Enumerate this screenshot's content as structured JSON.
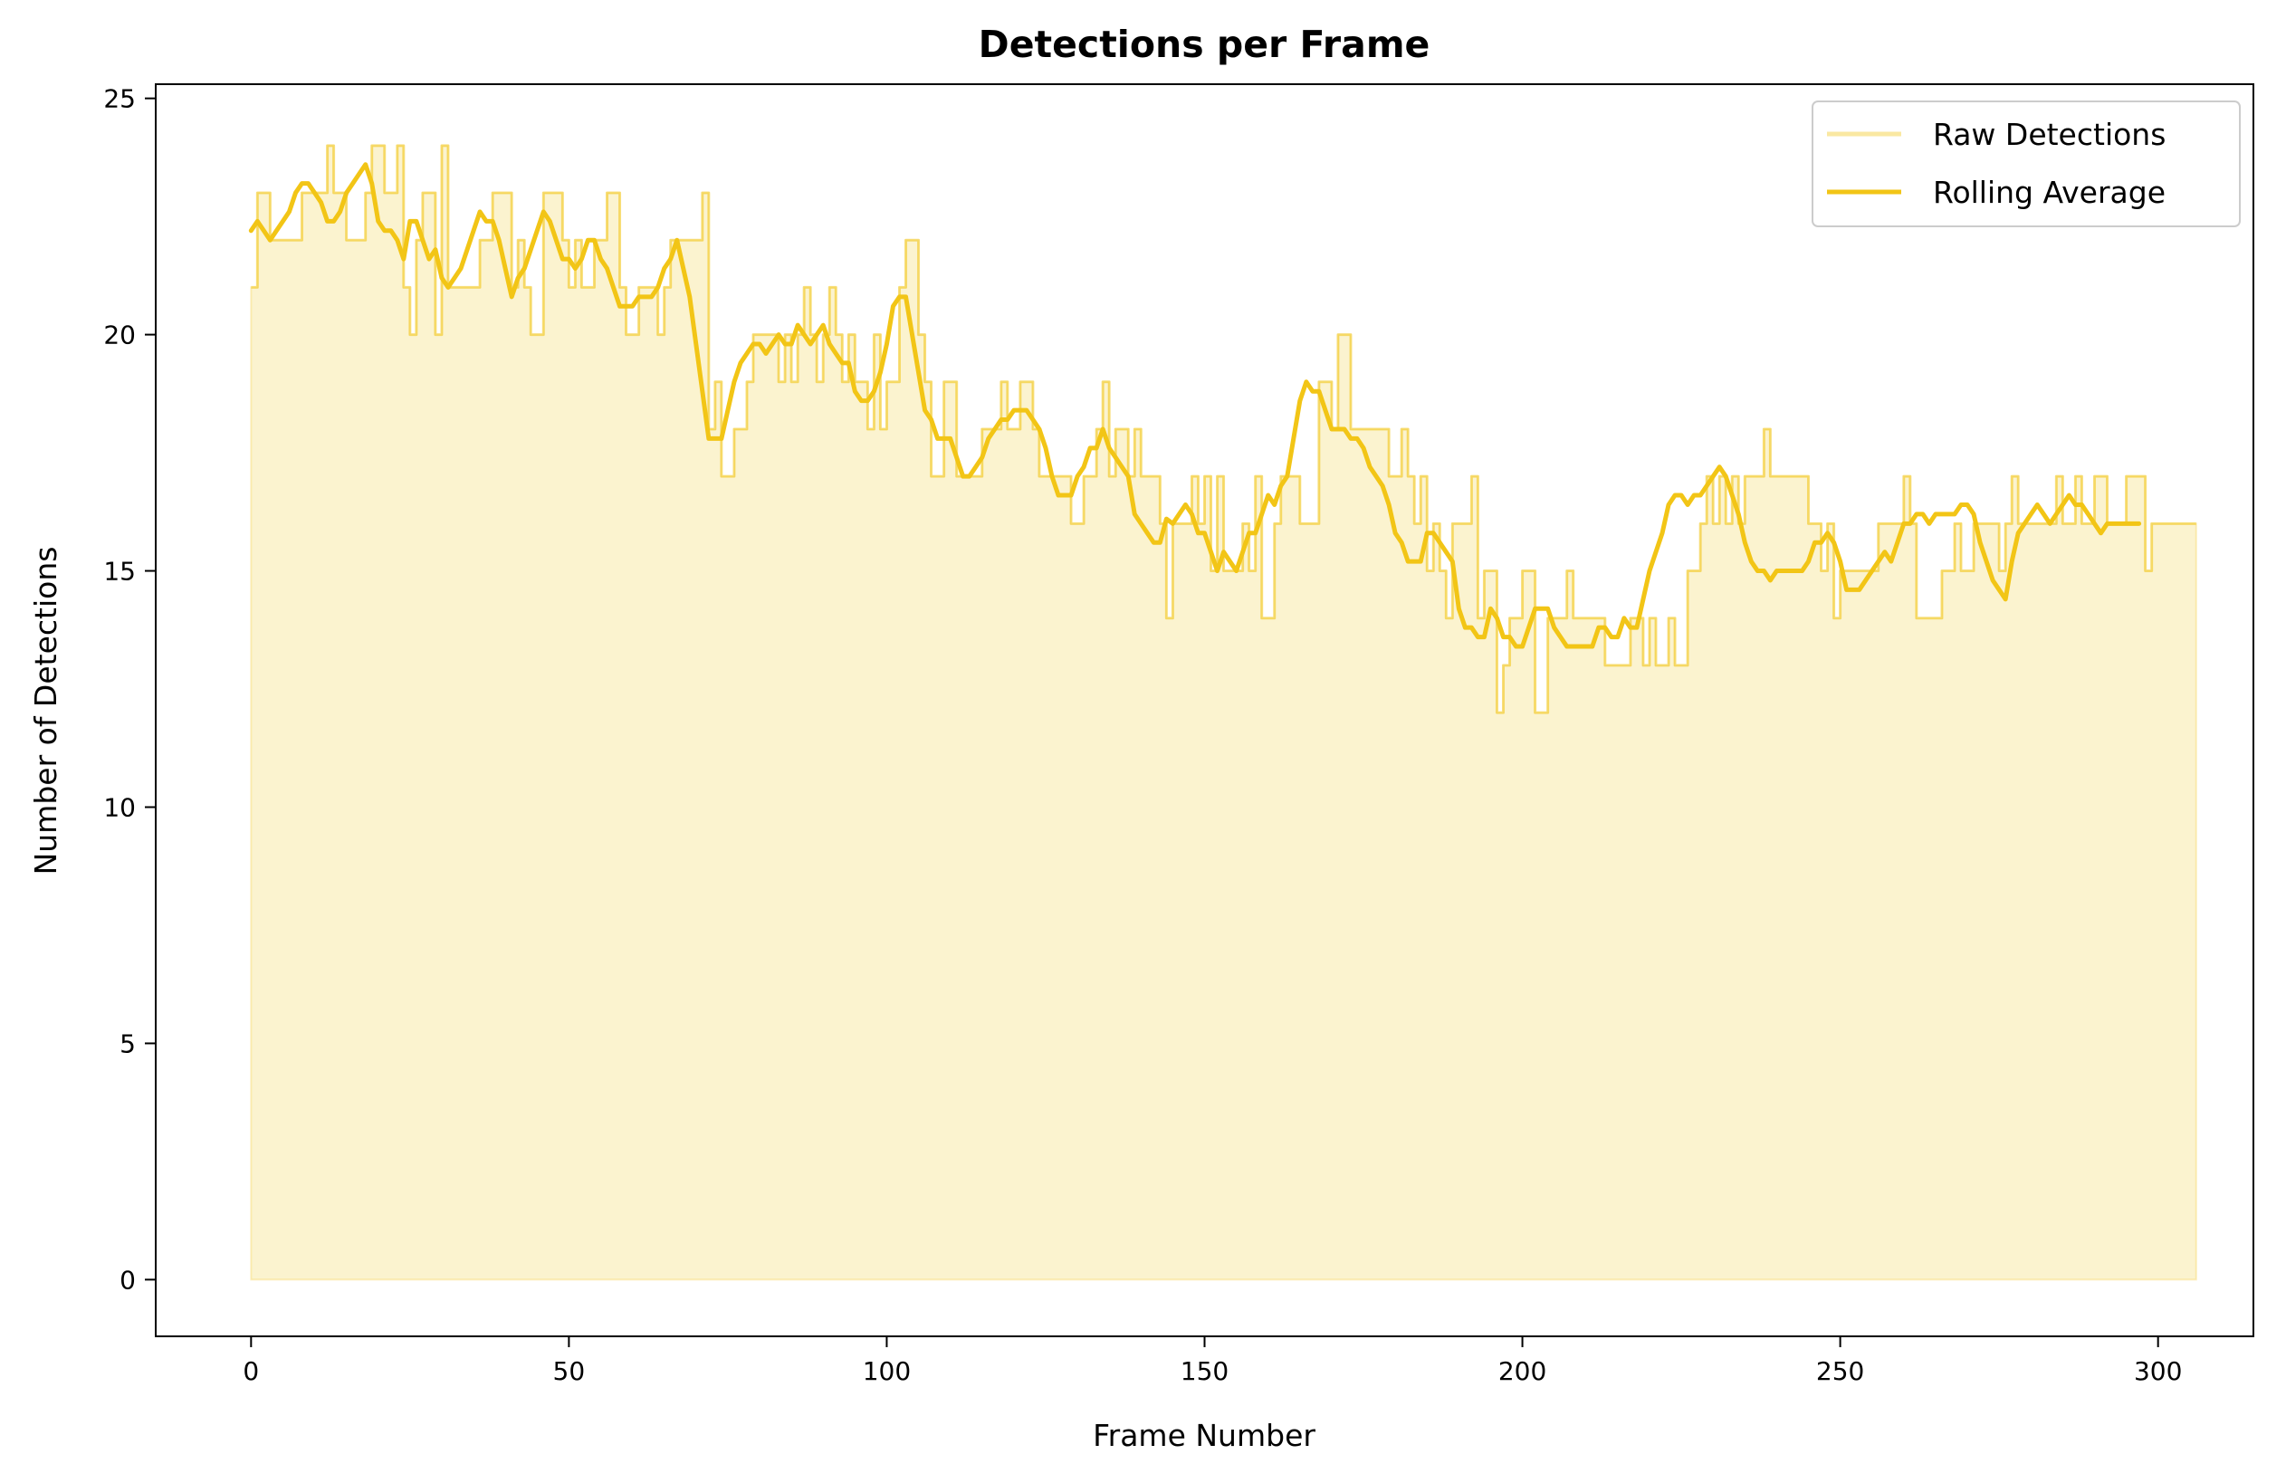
{
  "chart_data": {
    "type": "area",
    "title": "Detections per Frame",
    "xlabel": "Frame Number",
    "ylabel": "Number of Detections",
    "xlim": [
      -15,
      315
    ],
    "ylim": [
      -1.2,
      25.3
    ],
    "xticks": [
      0,
      50,
      100,
      150,
      200,
      250,
      300
    ],
    "yticks": [
      0,
      5,
      10,
      15,
      20,
      25
    ],
    "grid": false,
    "legend_position": "top-right",
    "colors": {
      "raw": "#f2c516",
      "rolling": "#f2c516",
      "fill": "#fbf3cf"
    },
    "series": [
      {
        "name": "Raw Detections",
        "style": "line-with-fill",
        "values": [
          21,
          23,
          23,
          22,
          22,
          22,
          22,
          22,
          23,
          23,
          23,
          23,
          24,
          23,
          23,
          22,
          22,
          22,
          23,
          24,
          24,
          23,
          23,
          24,
          21,
          20,
          22,
          23,
          23,
          20,
          24,
          21,
          21,
          21,
          21,
          21,
          22,
          22,
          23,
          23,
          23,
          21,
          22,
          21,
          20,
          20,
          23,
          23,
          23,
          22,
          21,
          22,
          21,
          21,
          22,
          22,
          23,
          23,
          21,
          20,
          20,
          21,
          21,
          21,
          20,
          21,
          22,
          22,
          22,
          22,
          22,
          23,
          18,
          19,
          17,
          17,
          18,
          18,
          19,
          20,
          20,
          20,
          20,
          19,
          20,
          19,
          20,
          21,
          20,
          19,
          20,
          21,
          20,
          19,
          20,
          19,
          19,
          18,
          20,
          18,
          19,
          19,
          21,
          22,
          22,
          20,
          19,
          17,
          17,
          19,
          19,
          17,
          17,
          17,
          17,
          18,
          18,
          18,
          19,
          18,
          18,
          19,
          19,
          18,
          17,
          17,
          17,
          17,
          17,
          16,
          16,
          17,
          17,
          18,
          19,
          17,
          18,
          18,
          17,
          18,
          17,
          17,
          17,
          16,
          14,
          16,
          16,
          16,
          17,
          16,
          17,
          15,
          17,
          15,
          15,
          15,
          16,
          15,
          17,
          14,
          14,
          16,
          17,
          17,
          17,
          16,
          16,
          16,
          19,
          19,
          18,
          20,
          20,
          18,
          18,
          18,
          18,
          18,
          18,
          17,
          17,
          18,
          17,
          16,
          17,
          15,
          16,
          15,
          14,
          16,
          16,
          16,
          17,
          14,
          15,
          15,
          12,
          13,
          14,
          14,
          15,
          15,
          12,
          12,
          14,
          14,
          14,
          15,
          14,
          14,
          14,
          14,
          14,
          13,
          13,
          13,
          13,
          14,
          14,
          13,
          14,
          13,
          13,
          14,
          13,
          13,
          15,
          15,
          16,
          17,
          16,
          17,
          16,
          17,
          16,
          17,
          17,
          17,
          18,
          17,
          17,
          17,
          17,
          17,
          17,
          16,
          16,
          15,
          16,
          14,
          15,
          15,
          15,
          15,
          15,
          15,
          16,
          16,
          16,
          16,
          17,
          16,
          14,
          14,
          14,
          14,
          15,
          15,
          16,
          15,
          15,
          16,
          16,
          16,
          16,
          15,
          16,
          17,
          16,
          16,
          16,
          16,
          16,
          16,
          17,
          16,
          16,
          17,
          16,
          16,
          17,
          17,
          16,
          16,
          16,
          17,
          17,
          17,
          15,
          16,
          16,
          16,
          16,
          16,
          16,
          16
        ]
      },
      {
        "name": "Rolling Average",
        "style": "line",
        "values": [
          22.2,
          22.4,
          22.2,
          22.0,
          22.2,
          22.4,
          22.6,
          23.0,
          23.2,
          23.2,
          23.0,
          22.8,
          22.4,
          22.4,
          22.6,
          23.0,
          23.2,
          23.4,
          23.6,
          23.2,
          22.4,
          22.2,
          22.2,
          22.0,
          21.6,
          22.4,
          22.4,
          22.0,
          21.6,
          21.8,
          21.2,
          21.0,
          21.2,
          21.4,
          21.8,
          22.2,
          22.6,
          22.4,
          22.4,
          22.0,
          21.4,
          20.8,
          21.2,
          21.4,
          21.8,
          22.2,
          22.6,
          22.4,
          22.0,
          21.6,
          21.6,
          21.4,
          21.6,
          22.0,
          22.0,
          21.6,
          21.4,
          21.0,
          20.6,
          20.6,
          20.6,
          20.8,
          20.8,
          20.8,
          21.0,
          21.4,
          21.6,
          22.0,
          21.4,
          20.8,
          19.8,
          18.8,
          17.8,
          17.8,
          17.8,
          18.4,
          19.0,
          19.4,
          19.6,
          19.8,
          19.8,
          19.6,
          19.8,
          20.0,
          19.8,
          19.8,
          20.2,
          20.0,
          19.8,
          20.0,
          20.2,
          19.8,
          19.6,
          19.4,
          19.4,
          18.8,
          18.6,
          18.6,
          18.8,
          19.2,
          19.8,
          20.6,
          20.8,
          20.8,
          20.0,
          19.2,
          18.4,
          18.2,
          17.8,
          17.8,
          17.8,
          17.4,
          17.0,
          17.0,
          17.2,
          17.4,
          17.8,
          18.0,
          18.2,
          18.2,
          18.4,
          18.4,
          18.4,
          18.2,
          18.0,
          17.6,
          17.0,
          16.6,
          16.6,
          16.6,
          17.0,
          17.2,
          17.6,
          17.6,
          18.0,
          17.6,
          17.4,
          17.2,
          17.0,
          16.2,
          16.0,
          15.8,
          15.6,
          15.6,
          16.1,
          16.0,
          16.2,
          16.4,
          16.2,
          15.8,
          15.8,
          15.4,
          15.0,
          15.4,
          15.2,
          15.0,
          15.4,
          15.8,
          15.8,
          16.2,
          16.6,
          16.4,
          16.8,
          17.0,
          17.8,
          18.6,
          19.0,
          18.8,
          18.8,
          18.4,
          18.0,
          18.0,
          18.0,
          17.8,
          17.8,
          17.6,
          17.2,
          17.0,
          16.8,
          16.4,
          15.8,
          15.6,
          15.2,
          15.2,
          15.2,
          15.8,
          15.8,
          15.6,
          15.4,
          15.2,
          14.2,
          13.8,
          13.8,
          13.6,
          13.6,
          14.2,
          14.0,
          13.6,
          13.6,
          13.4,
          13.4,
          13.8,
          14.2,
          14.2,
          14.2,
          13.8,
          13.6,
          13.4,
          13.4,
          13.4,
          13.4,
          13.4,
          13.8,
          13.8,
          13.6,
          13.6,
          14.0,
          13.8,
          13.8,
          14.4,
          15.0,
          15.4,
          15.8,
          16.4,
          16.6,
          16.6,
          16.4,
          16.6,
          16.6,
          16.8,
          17.0,
          17.2,
          17.0,
          16.6,
          16.2,
          15.6,
          15.2,
          15.0,
          15.0,
          14.8,
          15.0,
          15.0,
          15.0,
          15.0,
          15.0,
          15.2,
          15.6,
          15.6,
          15.8,
          15.6,
          15.2,
          14.6,
          14.6,
          14.6,
          14.8,
          15.0,
          15.2,
          15.4,
          15.2,
          15.6,
          16.0,
          16.0,
          16.2,
          16.2,
          16.0,
          16.2,
          16.2,
          16.2,
          16.2,
          16.4,
          16.4,
          16.2,
          15.6,
          15.2,
          14.8,
          14.6,
          14.4,
          15.2,
          15.8,
          16.0,
          16.2,
          16.4,
          16.2,
          16.0,
          16.2,
          16.4,
          16.6,
          16.4,
          16.4,
          16.2,
          16.0,
          15.8,
          16.0,
          16.0,
          16.0,
          16.0,
          16.0,
          16.0
        ]
      }
    ]
  }
}
